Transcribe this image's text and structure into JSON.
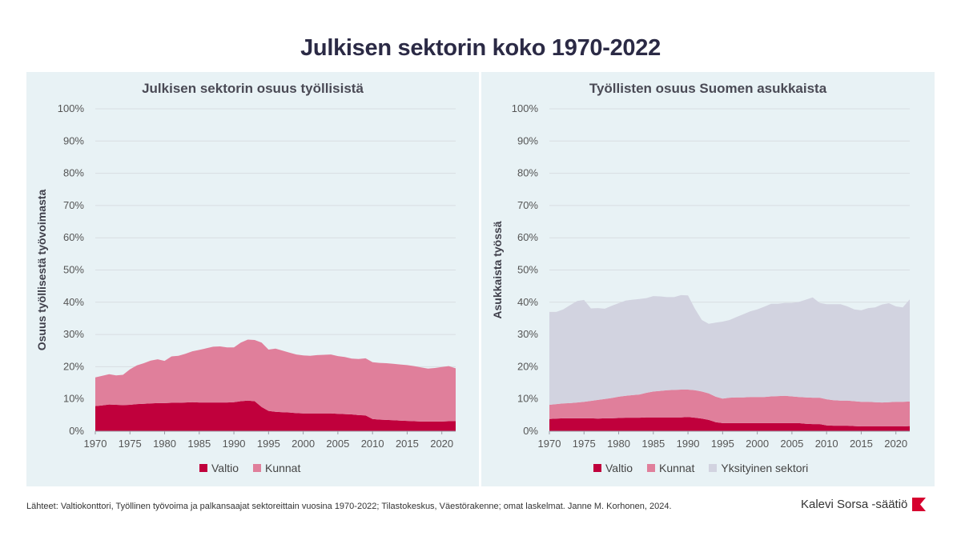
{
  "title": "Julkisen sektorin koko 1970-2022",
  "source": "Lähteet: Valtiokonttori, Työllinen työvoima ja palkansaajat sektoreittain vuosina 1970-2022; Tilastokeskus, Väestörakenne; omat laskelmat. Janne M. Korhonen, 2024.",
  "brand": "Kalevi Sorsa -säätiö",
  "colors": {
    "valtio": "#c0003c",
    "kunnat": "#e07f9b",
    "yksityinen": "#d2d3e0",
    "panel": "#e8f2f5",
    "grid": "#d9dde2"
  },
  "chart_data": [
    {
      "type": "area",
      "stacked": true,
      "title": "Julkisen sektorin osuus työllisistä",
      "ylabel": "Osuus työllisestä työvoimasta",
      "xlabel": "",
      "ylim": [
        0,
        100
      ],
      "yticks": [
        "0%",
        "10%",
        "20%",
        "30%",
        "40%",
        "50%",
        "60%",
        "70%",
        "80%",
        "90%",
        "100%"
      ],
      "xticks": [
        "1970",
        "1975",
        "1980",
        "1985",
        "1990",
        "1995",
        "2000",
        "2005",
        "2010",
        "2015",
        "2020"
      ],
      "grid": true,
      "legend_position": "bottom",
      "x": [
        1970,
        1971,
        1972,
        1973,
        1974,
        1975,
        1976,
        1977,
        1978,
        1979,
        1980,
        1981,
        1982,
        1983,
        1984,
        1985,
        1986,
        1987,
        1988,
        1989,
        1990,
        1991,
        1992,
        1993,
        1994,
        1995,
        1996,
        1997,
        1998,
        1999,
        2000,
        2001,
        2002,
        2003,
        2004,
        2005,
        2006,
        2007,
        2008,
        2009,
        2010,
        2011,
        2012,
        2013,
        2014,
        2015,
        2016,
        2017,
        2018,
        2019,
        2020,
        2021,
        2022
      ],
      "series": [
        {
          "name": "Valtio",
          "values": [
            7.8,
            8.0,
            8.3,
            8.2,
            8.1,
            8.2,
            8.4,
            8.5,
            8.6,
            8.7,
            8.7,
            8.8,
            8.8,
            8.9,
            9.0,
            8.9,
            8.9,
            8.9,
            8.9,
            8.9,
            9.0,
            9.3,
            9.5,
            9.3,
            7.5,
            6.3,
            6.0,
            5.9,
            5.8,
            5.6,
            5.5,
            5.5,
            5.5,
            5.5,
            5.5,
            5.4,
            5.3,
            5.2,
            5.0,
            4.9,
            3.8,
            3.6,
            3.5,
            3.4,
            3.3,
            3.2,
            3.1,
            3.0,
            3.0,
            3.0,
            3.0,
            3.1,
            3.1
          ]
        },
        {
          "name": "Kunnat",
          "values": [
            8.9,
            9.2,
            9.4,
            9.1,
            9.4,
            11.0,
            12.0,
            12.6,
            13.3,
            13.6,
            13.1,
            14.4,
            14.6,
            15.1,
            15.8,
            16.3,
            16.8,
            17.3,
            17.4,
            17.1,
            17.0,
            18.2,
            18.9,
            19.0,
            20.0,
            19.0,
            19.6,
            19.1,
            18.6,
            18.2,
            18.0,
            17.9,
            18.1,
            18.2,
            18.3,
            17.9,
            17.7,
            17.3,
            17.4,
            17.7,
            17.6,
            17.6,
            17.6,
            17.5,
            17.4,
            17.3,
            17.1,
            16.8,
            16.4,
            16.6,
            16.9,
            17.1,
            16.4
          ]
        }
      ]
    },
    {
      "type": "area",
      "stacked": true,
      "title": "Työllisten osuus Suomen asukkaista",
      "ylabel": "Asukkaista työssä",
      "xlabel": "",
      "ylim": [
        0,
        100
      ],
      "yticks": [
        "0%",
        "10%",
        "20%",
        "30%",
        "40%",
        "50%",
        "60%",
        "70%",
        "80%",
        "90%",
        "100%"
      ],
      "xticks": [
        "1970",
        "1975",
        "1980",
        "1985",
        "1990",
        "1995",
        "2000",
        "2005",
        "2010",
        "2015",
        "2020"
      ],
      "grid": true,
      "legend_position": "bottom",
      "x": [
        1970,
        1971,
        1972,
        1973,
        1974,
        1975,
        1976,
        1977,
        1978,
        1979,
        1980,
        1981,
        1982,
        1983,
        1984,
        1985,
        1986,
        1987,
        1988,
        1989,
        1990,
        1991,
        1992,
        1993,
        1994,
        1995,
        1996,
        1997,
        1998,
        1999,
        2000,
        2001,
        2002,
        2003,
        2004,
        2005,
        2006,
        2007,
        2008,
        2009,
        2010,
        2011,
        2012,
        2013,
        2014,
        2015,
        2016,
        2017,
        2018,
        2019,
        2020,
        2021,
        2022
      ],
      "series": [
        {
          "name": "Valtio",
          "values": [
            3.8,
            3.9,
            4.0,
            4.0,
            4.0,
            4.0,
            4.0,
            3.9,
            4.0,
            4.0,
            4.1,
            4.2,
            4.2,
            4.2,
            4.3,
            4.3,
            4.3,
            4.3,
            4.3,
            4.3,
            4.4,
            4.2,
            3.9,
            3.5,
            2.8,
            2.5,
            2.5,
            2.5,
            2.5,
            2.5,
            2.5,
            2.5,
            2.5,
            2.5,
            2.5,
            2.5,
            2.5,
            2.3,
            2.2,
            2.2,
            1.8,
            1.7,
            1.7,
            1.7,
            1.6,
            1.5,
            1.5,
            1.5,
            1.5,
            1.5,
            1.5,
            1.5,
            1.6
          ]
        },
        {
          "name": "Kunnat",
          "values": [
            4.4,
            4.5,
            4.6,
            4.7,
            4.9,
            5.1,
            5.4,
            5.8,
            6.0,
            6.3,
            6.6,
            6.8,
            7.0,
            7.2,
            7.6,
            8.0,
            8.2,
            8.4,
            8.5,
            8.6,
            8.5,
            8.5,
            8.4,
            8.2,
            7.9,
            7.6,
            7.9,
            8.0,
            8.0,
            8.1,
            8.1,
            8.1,
            8.3,
            8.4,
            8.5,
            8.3,
            8.1,
            8.2,
            8.2,
            8.2,
            8.1,
            7.9,
            7.8,
            7.8,
            7.7,
            7.6,
            7.6,
            7.5,
            7.4,
            7.5,
            7.6,
            7.6,
            7.6
          ]
        },
        {
          "name": "Yksityinen sektori",
          "values": [
            28.8,
            28.6,
            29.2,
            30.4,
            31.5,
            31.6,
            28.7,
            28.5,
            28.0,
            28.6,
            29.0,
            29.5,
            29.6,
            29.6,
            29.4,
            29.6,
            29.3,
            28.9,
            28.8,
            29.3,
            29.2,
            25.3,
            22.2,
            21.6,
            23.0,
            23.9,
            24.1,
            24.9,
            25.8,
            26.6,
            27.2,
            28.0,
            28.7,
            28.6,
            28.8,
            29.0,
            29.5,
            30.3,
            31.1,
            29.4,
            29.5,
            29.8,
            29.9,
            29.2,
            28.5,
            28.4,
            29.1,
            29.4,
            30.4,
            30.7,
            29.6,
            29.3,
            31.7
          ]
        }
      ]
    }
  ]
}
